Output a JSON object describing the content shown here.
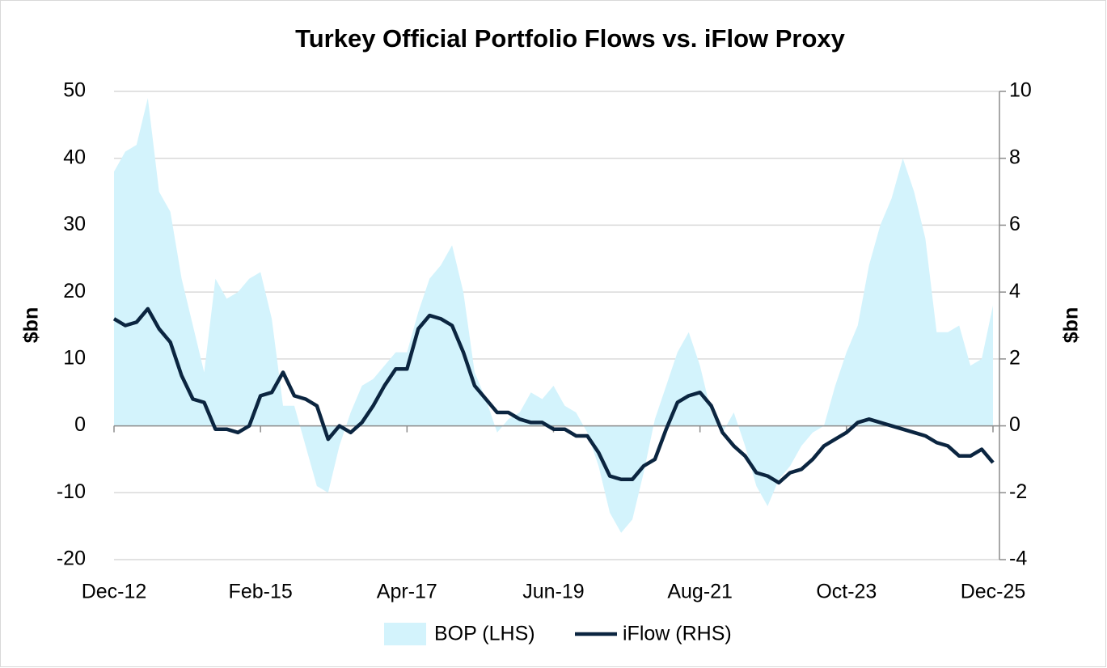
{
  "chart_data": {
    "type": "area_line",
    "title": "Turkey Official Portfolio Flows vs. iFlow Proxy",
    "ylabel": "$bn",
    "y2label": "$bn",
    "categories": [
      "Dec-12",
      null,
      null,
      null,
      null,
      null,
      null,
      null,
      null,
      null,
      null,
      null,
      null,
      "Feb-15",
      null,
      null,
      null,
      null,
      null,
      null,
      null,
      null,
      null,
      null,
      null,
      null,
      "Apr-17",
      null,
      null,
      null,
      null,
      null,
      null,
      null,
      null,
      null,
      null,
      null,
      null,
      "Jun-19",
      null,
      null,
      null,
      null,
      null,
      null,
      null,
      null,
      null,
      null,
      null,
      null,
      "Aug-21",
      null,
      null,
      null,
      null,
      null,
      null,
      null,
      null,
      null,
      null,
      null,
      null,
      "Oct-23",
      null,
      null,
      null,
      null,
      null,
      null,
      null,
      null,
      null,
      null,
      null,
      null,
      "Dec-25"
    ],
    "ylim": [
      -20,
      50
    ],
    "yticks": [
      -20,
      -10,
      0,
      10,
      20,
      30,
      40,
      50
    ],
    "y2lim": [
      -4,
      10
    ],
    "y2ticks": [
      -4,
      -2,
      0,
      2,
      4,
      6,
      8,
      10
    ],
    "grid": true,
    "legend": "bottom",
    "series": [
      {
        "name": "BOP (LHS)",
        "color": "#d3f3fc",
        "kind": "area",
        "axis": "y",
        "values": [
          38,
          41,
          42,
          49,
          35,
          32,
          22,
          15,
          8,
          22,
          19,
          20,
          22,
          23,
          16,
          3,
          3,
          -3,
          -9,
          -10,
          -3,
          2,
          6,
          7,
          9,
          11,
          11,
          17,
          22,
          24,
          27,
          20,
          8,
          4,
          -1,
          1,
          2,
          5,
          4,
          6,
          3,
          2,
          -1,
          -6,
          -13,
          -16,
          -14,
          -7,
          1,
          6,
          11,
          14,
          9,
          2,
          -1,
          2,
          -3,
          -9,
          -12,
          -8,
          -6,
          -3,
          -1,
          0,
          6,
          11,
          15,
          24,
          30,
          34,
          40,
          35,
          28,
          14,
          14,
          15,
          9,
          10,
          18
        ]
      },
      {
        "name": "iFlow (RHS)",
        "color": "#0b2540",
        "kind": "line",
        "axis": "y2",
        "values": [
          3.2,
          3.0,
          3.1,
          3.5,
          2.9,
          2.5,
          1.5,
          0.8,
          0.7,
          -0.1,
          -0.1,
          -0.2,
          0,
          0.9,
          1.0,
          1.6,
          0.9,
          0.8,
          0.6,
          -0.4,
          0.0,
          -0.2,
          0.1,
          0.6,
          1.2,
          1.7,
          1.7,
          2.9,
          3.3,
          3.2,
          3.0,
          2.2,
          1.2,
          0.8,
          0.4,
          0.4,
          0.2,
          0.1,
          0.1,
          -0.1,
          -0.1,
          -0.3,
          -0.3,
          -0.8,
          -1.5,
          -1.6,
          -1.6,
          -1.2,
          -1.0,
          -0.1,
          0.7,
          0.9,
          1.0,
          0.6,
          -0.2,
          -0.6,
          -0.9,
          -1.4,
          -1.5,
          -1.7,
          -1.4,
          -1.3,
          -1.0,
          -0.6,
          -0.4,
          -0.2,
          0.1,
          0.2,
          0.1,
          0.0,
          -0.1,
          -0.2,
          -0.3,
          -0.5,
          -0.6,
          -0.9,
          -0.9,
          -0.7,
          -1.1
        ]
      }
    ]
  }
}
